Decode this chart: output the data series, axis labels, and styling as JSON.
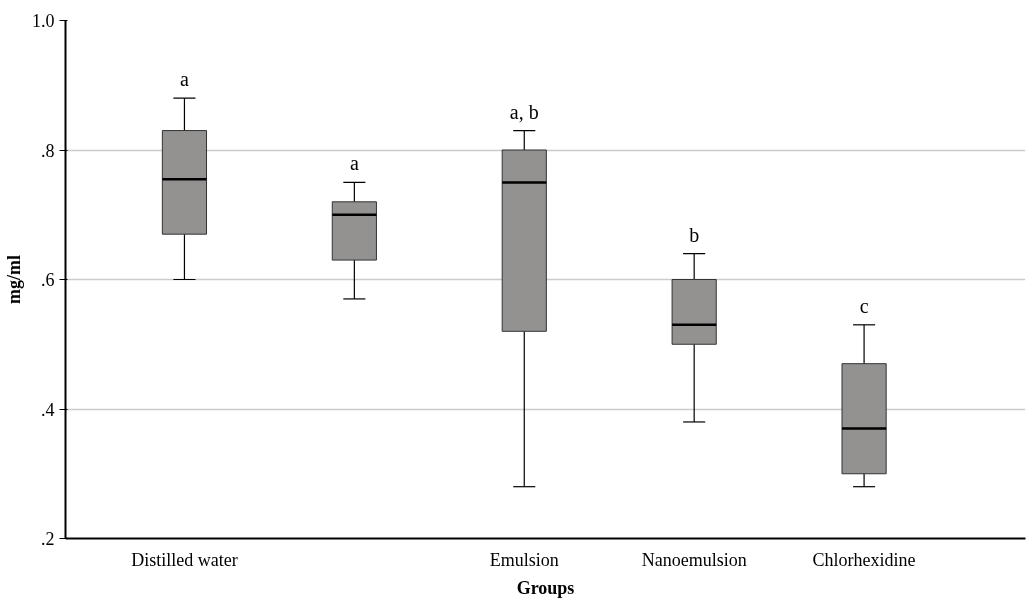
{
  "chart_data": {
    "type": "box",
    "xlabel": "Groups",
    "ylabel": "mg/ml",
    "categories": [
      "Distilled water",
      null,
      "Emulsion",
      "Nanoemulsion",
      "Chlorhexidine"
    ],
    "boxes": [
      {
        "low": 0.6,
        "q1": 0.67,
        "median": 0.755,
        "q3": 0.83,
        "high": 0.88
      },
      {
        "low": 0.57,
        "q1": 0.63,
        "median": 0.7,
        "q3": 0.72,
        "high": 0.75
      },
      {
        "low": 0.28,
        "q1": 0.52,
        "median": 0.75,
        "q3": 0.8,
        "high": 0.83
      },
      {
        "low": 0.38,
        "q1": 0.5,
        "median": 0.53,
        "q3": 0.6,
        "high": 0.64
      },
      {
        "low": 0.28,
        "q1": 0.3,
        "median": 0.37,
        "q3": 0.47,
        "high": 0.53
      }
    ],
    "color": "#949191",
    "annotations": [
      "a",
      "a",
      "a, b",
      "b",
      "c"
    ],
    "ylim": [
      0.2,
      1.0
    ],
    "yticks": [
      {
        "value": 0.2,
        "label": ".2"
      },
      {
        "value": 0.4,
        "label": ".4"
      },
      {
        "value": 0.6,
        "label": ".6"
      },
      {
        "value": 0.8,
        "label": ".8"
      },
      {
        "value": 1.0,
        "label": "1.0"
      }
    ],
    "grid": "y"
  }
}
